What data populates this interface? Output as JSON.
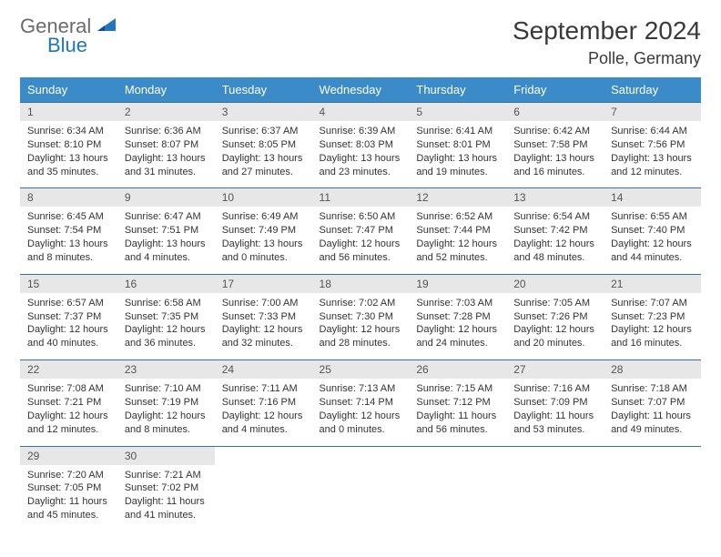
{
  "logo": {
    "first": "General",
    "second": "Blue"
  },
  "title": "September 2024",
  "location": "Polle, Germany",
  "colors": {
    "header_bg": "#3b8bc8",
    "header_text": "#ffffff",
    "daynum_bg": "#e7e7e7",
    "row_border": "#3b6fa8",
    "logo_gray": "#6b6b6b",
    "logo_blue": "#2176bc"
  },
  "day_names": [
    "Sunday",
    "Monday",
    "Tuesday",
    "Wednesday",
    "Thursday",
    "Friday",
    "Saturday"
  ],
  "weeks": [
    [
      {
        "n": "1",
        "sunrise": "6:34 AM",
        "sunset": "8:10 PM",
        "dl": "13 hours and 35 minutes."
      },
      {
        "n": "2",
        "sunrise": "6:36 AM",
        "sunset": "8:07 PM",
        "dl": "13 hours and 31 minutes."
      },
      {
        "n": "3",
        "sunrise": "6:37 AM",
        "sunset": "8:05 PM",
        "dl": "13 hours and 27 minutes."
      },
      {
        "n": "4",
        "sunrise": "6:39 AM",
        "sunset": "8:03 PM",
        "dl": "13 hours and 23 minutes."
      },
      {
        "n": "5",
        "sunrise": "6:41 AM",
        "sunset": "8:01 PM",
        "dl": "13 hours and 19 minutes."
      },
      {
        "n": "6",
        "sunrise": "6:42 AM",
        "sunset": "7:58 PM",
        "dl": "13 hours and 16 minutes."
      },
      {
        "n": "7",
        "sunrise": "6:44 AM",
        "sunset": "7:56 PM",
        "dl": "13 hours and 12 minutes."
      }
    ],
    [
      {
        "n": "8",
        "sunrise": "6:45 AM",
        "sunset": "7:54 PM",
        "dl": "13 hours and 8 minutes."
      },
      {
        "n": "9",
        "sunrise": "6:47 AM",
        "sunset": "7:51 PM",
        "dl": "13 hours and 4 minutes."
      },
      {
        "n": "10",
        "sunrise": "6:49 AM",
        "sunset": "7:49 PM",
        "dl": "13 hours and 0 minutes."
      },
      {
        "n": "11",
        "sunrise": "6:50 AM",
        "sunset": "7:47 PM",
        "dl": "12 hours and 56 minutes."
      },
      {
        "n": "12",
        "sunrise": "6:52 AM",
        "sunset": "7:44 PM",
        "dl": "12 hours and 52 minutes."
      },
      {
        "n": "13",
        "sunrise": "6:54 AM",
        "sunset": "7:42 PM",
        "dl": "12 hours and 48 minutes."
      },
      {
        "n": "14",
        "sunrise": "6:55 AM",
        "sunset": "7:40 PM",
        "dl": "12 hours and 44 minutes."
      }
    ],
    [
      {
        "n": "15",
        "sunrise": "6:57 AM",
        "sunset": "7:37 PM",
        "dl": "12 hours and 40 minutes."
      },
      {
        "n": "16",
        "sunrise": "6:58 AM",
        "sunset": "7:35 PM",
        "dl": "12 hours and 36 minutes."
      },
      {
        "n": "17",
        "sunrise": "7:00 AM",
        "sunset": "7:33 PM",
        "dl": "12 hours and 32 minutes."
      },
      {
        "n": "18",
        "sunrise": "7:02 AM",
        "sunset": "7:30 PM",
        "dl": "12 hours and 28 minutes."
      },
      {
        "n": "19",
        "sunrise": "7:03 AM",
        "sunset": "7:28 PM",
        "dl": "12 hours and 24 minutes."
      },
      {
        "n": "20",
        "sunrise": "7:05 AM",
        "sunset": "7:26 PM",
        "dl": "12 hours and 20 minutes."
      },
      {
        "n": "21",
        "sunrise": "7:07 AM",
        "sunset": "7:23 PM",
        "dl": "12 hours and 16 minutes."
      }
    ],
    [
      {
        "n": "22",
        "sunrise": "7:08 AM",
        "sunset": "7:21 PM",
        "dl": "12 hours and 12 minutes."
      },
      {
        "n": "23",
        "sunrise": "7:10 AM",
        "sunset": "7:19 PM",
        "dl": "12 hours and 8 minutes."
      },
      {
        "n": "24",
        "sunrise": "7:11 AM",
        "sunset": "7:16 PM",
        "dl": "12 hours and 4 minutes."
      },
      {
        "n": "25",
        "sunrise": "7:13 AM",
        "sunset": "7:14 PM",
        "dl": "12 hours and 0 minutes."
      },
      {
        "n": "26",
        "sunrise": "7:15 AM",
        "sunset": "7:12 PM",
        "dl": "11 hours and 56 minutes."
      },
      {
        "n": "27",
        "sunrise": "7:16 AM",
        "sunset": "7:09 PM",
        "dl": "11 hours and 53 minutes."
      },
      {
        "n": "28",
        "sunrise": "7:18 AM",
        "sunset": "7:07 PM",
        "dl": "11 hours and 49 minutes."
      }
    ],
    [
      {
        "n": "29",
        "sunrise": "7:20 AM",
        "sunset": "7:05 PM",
        "dl": "11 hours and 45 minutes."
      },
      {
        "n": "30",
        "sunrise": "7:21 AM",
        "sunset": "7:02 PM",
        "dl": "11 hours and 41 minutes."
      },
      null,
      null,
      null,
      null,
      null
    ]
  ]
}
